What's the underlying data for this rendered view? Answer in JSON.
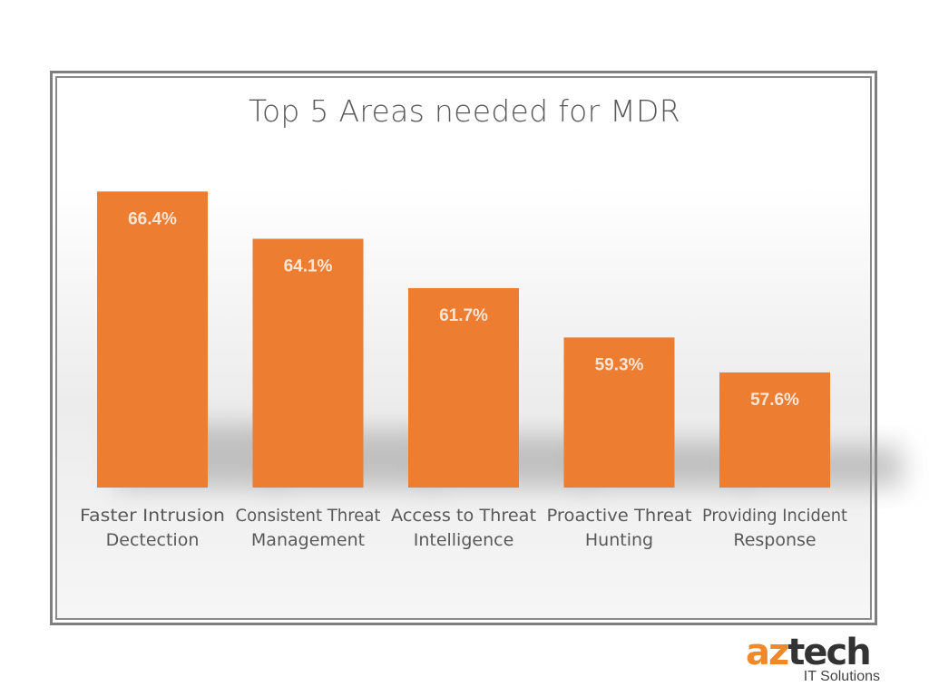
{
  "chart_data": {
    "type": "bar",
    "title": "Top 5 Areas needed for MDR",
    "categories": [
      [
        "Faster Intrusion",
        "Dectection"
      ],
      [
        "Consistent Threat",
        "Management"
      ],
      [
        "Access to Threat",
        "Intelligence"
      ],
      [
        "Proactive Threat",
        "Hunting"
      ],
      [
        "Providing Incident",
        "Response"
      ]
    ],
    "values": [
      66.4,
      64.1,
      61.7,
      59.3,
      57.6
    ],
    "data_labels": [
      "66.4%",
      "64.1%",
      "61.7%",
      "59.3%",
      "57.6%"
    ],
    "ylim": [
      52,
      68
    ],
    "grid": false,
    "xlabel": "",
    "ylabel": "",
    "bar_color": "#ed7d31"
  },
  "logo": {
    "text": "aztech",
    "part1": "az",
    "part2": "tech",
    "subtitle": "IT Solutions",
    "accent": "#f0892a"
  }
}
